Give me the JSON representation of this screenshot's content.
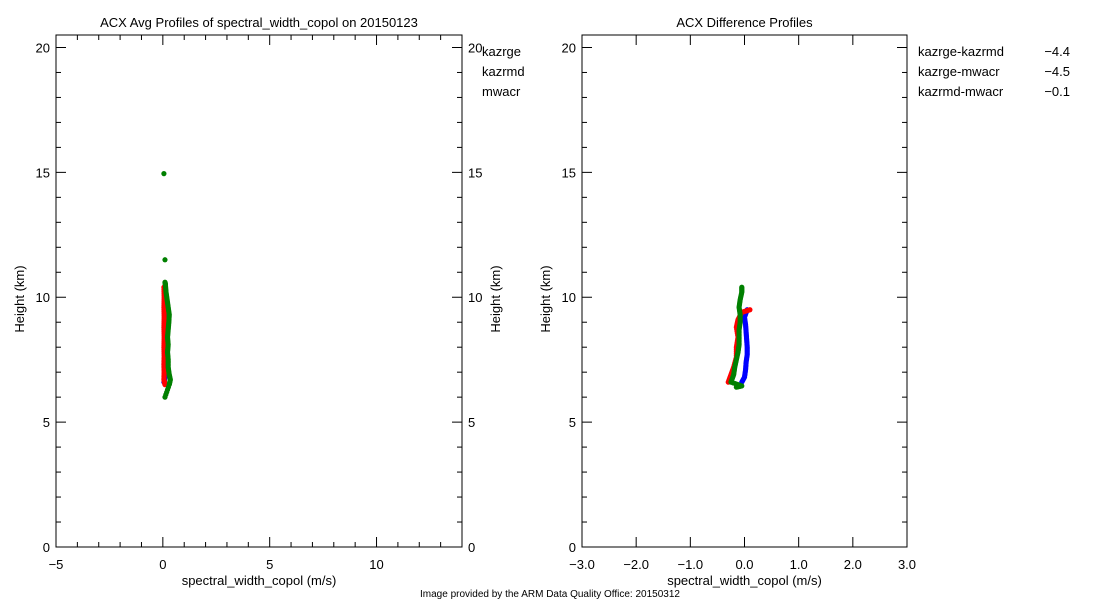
{
  "footer": "Image provided by the ARM Data Quality Office: 20150312",
  "footer_color": "#b00000",
  "chart_data": [
    {
      "type": "scatter",
      "title": "ACX Avg Profiles of spectral_width_copol on 20150123",
      "xlabel": "spectral_width_copol (m/s)",
      "ylabel": "Height (km)",
      "xlim": [
        -5,
        14
      ],
      "ylim": [
        0,
        20.5
      ],
      "xticks": [
        -5,
        0,
        5,
        10
      ],
      "xminor": 1,
      "yticks": [
        0,
        5,
        10,
        15,
        20
      ],
      "yminor": 1,
      "right_axis": true,
      "legend_placement": "top-right-outside",
      "series": [
        {
          "name": "kazrge",
          "color": "#0000ff",
          "label": "",
          "points": [
            [
              0.05,
              6.6
            ],
            [
              0.1,
              6.8
            ],
            [
              0.08,
              7.0
            ],
            [
              0.1,
              7.4
            ],
            [
              0.12,
              7.8
            ],
            [
              0.1,
              8.2
            ],
            [
              0.12,
              8.6
            ],
            [
              0.1,
              8.9
            ],
            [
              0.15,
              9.0
            ],
            [
              0.12,
              9.3
            ],
            [
              0.15,
              9.5
            ]
          ]
        },
        {
          "name": "kazrmd",
          "color": "#ff0000",
          "label": "",
          "points": [
            [
              0.1,
              6.5
            ],
            [
              0.05,
              6.7
            ],
            [
              0.06,
              7.0
            ],
            [
              0.05,
              7.3
            ],
            [
              0.06,
              7.6
            ],
            [
              0.05,
              8.0
            ],
            [
              0.06,
              8.4
            ],
            [
              0.05,
              8.8
            ],
            [
              0.06,
              9.2
            ],
            [
              0.05,
              9.6
            ],
            [
              0.06,
              10.0
            ],
            [
              0.05,
              10.4
            ]
          ]
        },
        {
          "name": "mwacr",
          "color": "#008000",
          "label": "",
          "points": [
            [
              0.1,
              6.0
            ],
            [
              0.3,
              6.5
            ],
            [
              0.35,
              6.7
            ],
            [
              0.3,
              6.9
            ],
            [
              0.25,
              7.2
            ],
            [
              0.25,
              7.5
            ],
            [
              0.22,
              7.8
            ],
            [
              0.25,
              8.1
            ],
            [
              0.22,
              8.4
            ],
            [
              0.25,
              8.7
            ],
            [
              0.28,
              9.0
            ],
            [
              0.3,
              9.3
            ],
            [
              0.25,
              9.6
            ],
            [
              0.2,
              9.9
            ],
            [
              0.15,
              10.2
            ],
            [
              0.12,
              10.5
            ],
            [
              0.1,
              10.6
            ],
            [
              0.1,
              11.5
            ],
            [
              0.05,
              14.95
            ]
          ]
        }
      ]
    },
    {
      "type": "scatter",
      "title": "ACX Difference Profiles",
      "xlabel": "spectral_width_copol (m/s)",
      "ylabel": "Height (km)",
      "xlim": [
        -3,
        3
      ],
      "ylim": [
        0,
        20.5
      ],
      "xticks": [
        -3.0,
        -2.0,
        -1.0,
        0.0,
        1.0,
        2.0,
        3.0
      ],
      "xticklabels": [
        "−3.0",
        "−2.0",
        "−1.0",
        "0.0",
        "1.0",
        "2.0",
        "3.0"
      ],
      "yticks": [
        0,
        5,
        10,
        15,
        20
      ],
      "yminor": 1,
      "legend_placement": "top-right-outside",
      "series": [
        {
          "name": "kazrge-kazrmd",
          "value": "−4.4",
          "color": "#0000ff",
          "points": [
            [
              -0.05,
              6.6
            ],
            [
              0.0,
              6.8
            ],
            [
              0.02,
              7.1
            ],
            [
              0.03,
              7.4
            ],
            [
              0.05,
              7.7
            ],
            [
              0.05,
              8.0
            ],
            [
              0.04,
              8.3
            ],
            [
              0.03,
              8.6
            ],
            [
              0.02,
              8.9
            ],
            [
              0.0,
              9.2
            ],
            [
              0.05,
              9.5
            ]
          ]
        },
        {
          "name": "kazrge-mwacr",
          "value": "−4.5",
          "color": "#ff0000",
          "points": [
            [
              -0.3,
              6.6
            ],
            [
              -0.25,
              6.9
            ],
            [
              -0.2,
              7.2
            ],
            [
              -0.15,
              7.6
            ],
            [
              -0.15,
              8.0
            ],
            [
              -0.12,
              8.4
            ],
            [
              -0.15,
              8.8
            ],
            [
              -0.12,
              9.1
            ],
            [
              -0.05,
              9.4
            ],
            [
              0.1,
              9.5
            ]
          ]
        },
        {
          "name": "kazrmd-mwacr",
          "value": "−0.1",
          "color": "#008000",
          "points": [
            [
              -0.15,
              6.4
            ],
            [
              -0.05,
              6.45
            ],
            [
              -0.25,
              6.6
            ],
            [
              -0.2,
              6.9
            ],
            [
              -0.18,
              7.2
            ],
            [
              -0.15,
              7.5
            ],
            [
              -0.12,
              7.8
            ],
            [
              -0.1,
              8.1
            ],
            [
              -0.1,
              8.4
            ],
            [
              -0.1,
              8.7
            ],
            [
              -0.08,
              9.0
            ],
            [
              -0.08,
              9.3
            ],
            [
              -0.1,
              9.6
            ],
            [
              -0.08,
              9.9
            ],
            [
              -0.05,
              10.2
            ],
            [
              -0.05,
              10.4
            ]
          ]
        }
      ]
    }
  ]
}
